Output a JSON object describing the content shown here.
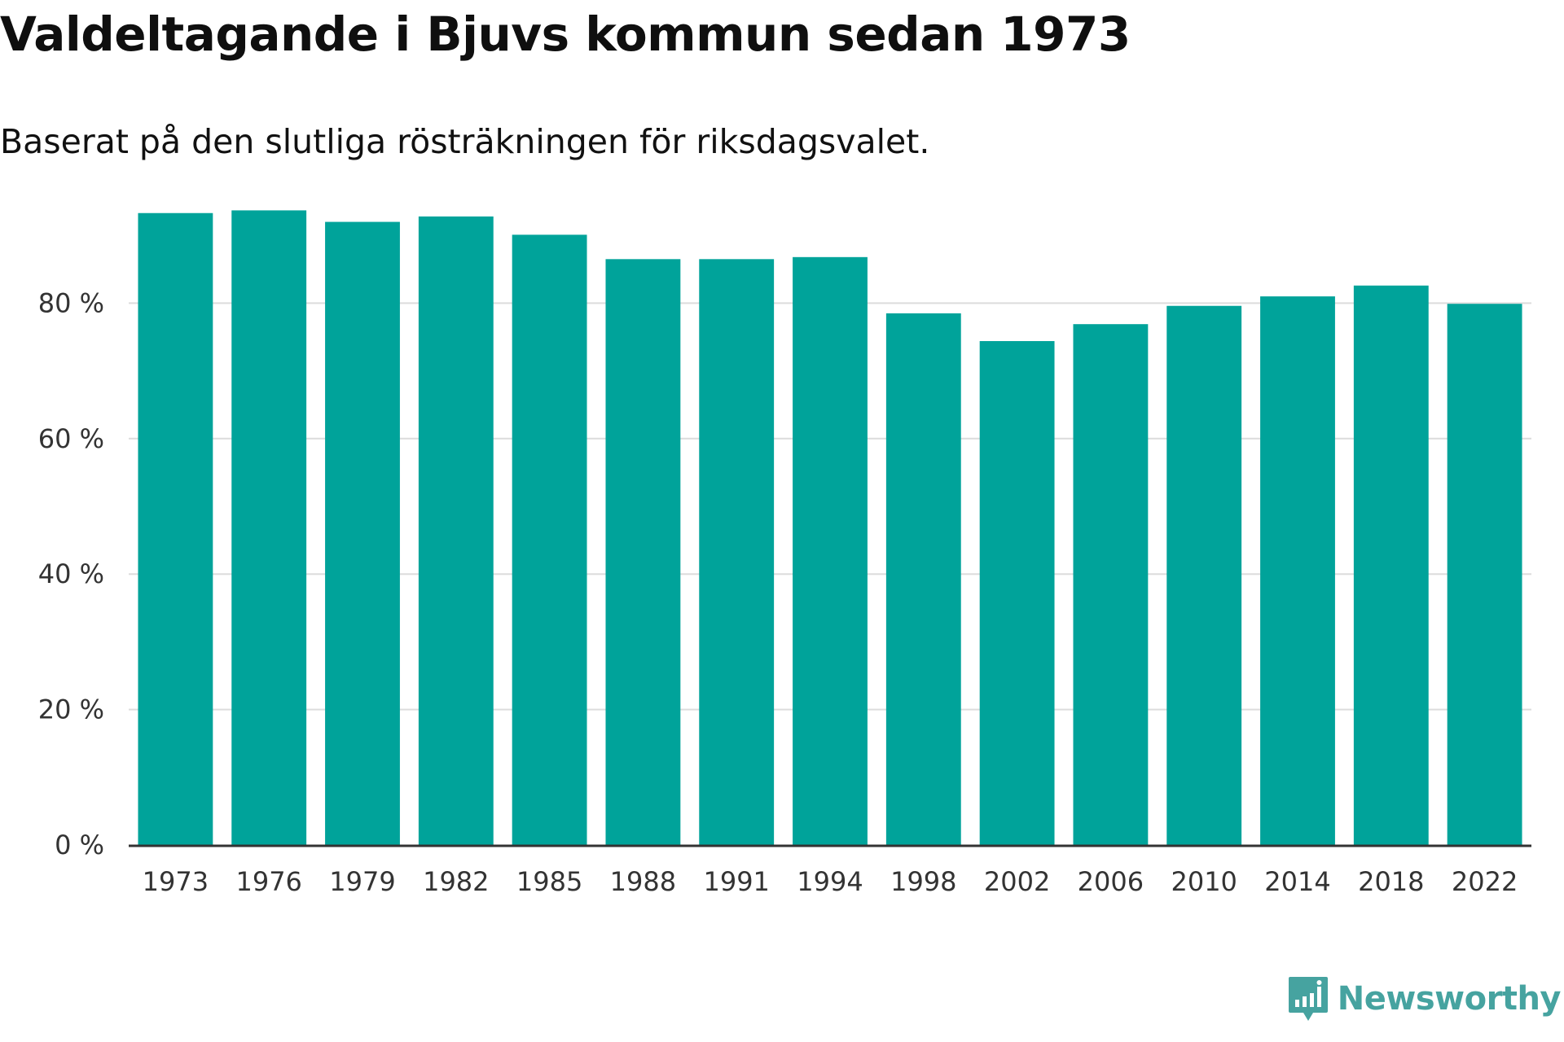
{
  "title": "Valdeltagande i Bjuvs kommun sedan 1973",
  "subtitle": "Baserat på den slutliga rösträkningen för riksdagsvalet.",
  "brand": {
    "name": "Newsworthy",
    "icon": "newsworthy-logo-icon",
    "color": "#46a3a0"
  },
  "colors": {
    "bar": "#00a39a",
    "grid": "#dcdcdc",
    "axis": "#333333"
  },
  "chart_data": {
    "type": "bar",
    "categories": [
      "1973",
      "1976",
      "1979",
      "1982",
      "1985",
      "1988",
      "1991",
      "1994",
      "1998",
      "2002",
      "2006",
      "2010",
      "2014",
      "2018",
      "2022"
    ],
    "values": [
      93.3,
      93.7,
      92.0,
      92.8,
      90.1,
      86.5,
      86.5,
      86.8,
      78.5,
      74.4,
      76.9,
      79.6,
      81.0,
      82.6,
      79.9
    ],
    "ylim": [
      0,
      100
    ],
    "yticks": [
      0,
      20,
      40,
      60,
      80
    ],
    "ytick_labels": [
      "0 %",
      "20 %",
      "40 %",
      "60 %",
      "80 %"
    ],
    "grid": true,
    "xlabel": "",
    "ylabel": ""
  }
}
